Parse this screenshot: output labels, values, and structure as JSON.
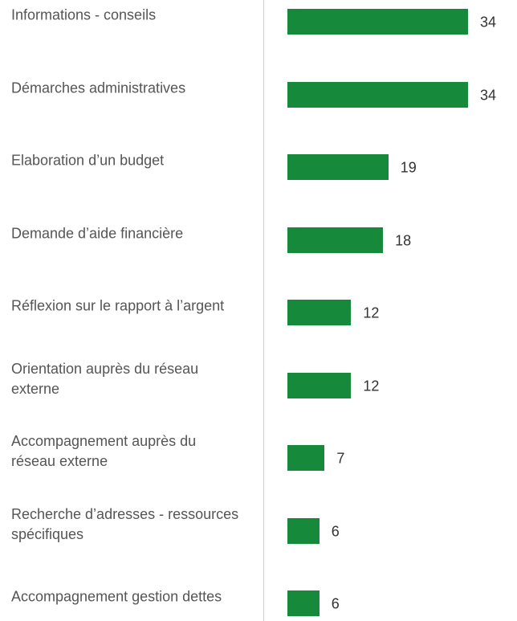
{
  "chart_data": {
    "type": "bar",
    "orientation": "horizontal",
    "color": "#168a3a",
    "categories": [
      "Informations - conseils",
      "Démarches administratives",
      "Elaboration d’un budget",
      "Demande d’aide financière",
      "Réflexion sur le rapport à l’argent",
      "Orientation auprès du réseau externe",
      "Accompagnement auprès du réseau externe",
      "Recherche d’adresses - ressources spécifiques",
      "Accompagnement gestion dettes"
    ],
    "values": [
      34,
      34,
      19,
      18,
      12,
      12,
      7,
      6,
      6
    ]
  }
}
